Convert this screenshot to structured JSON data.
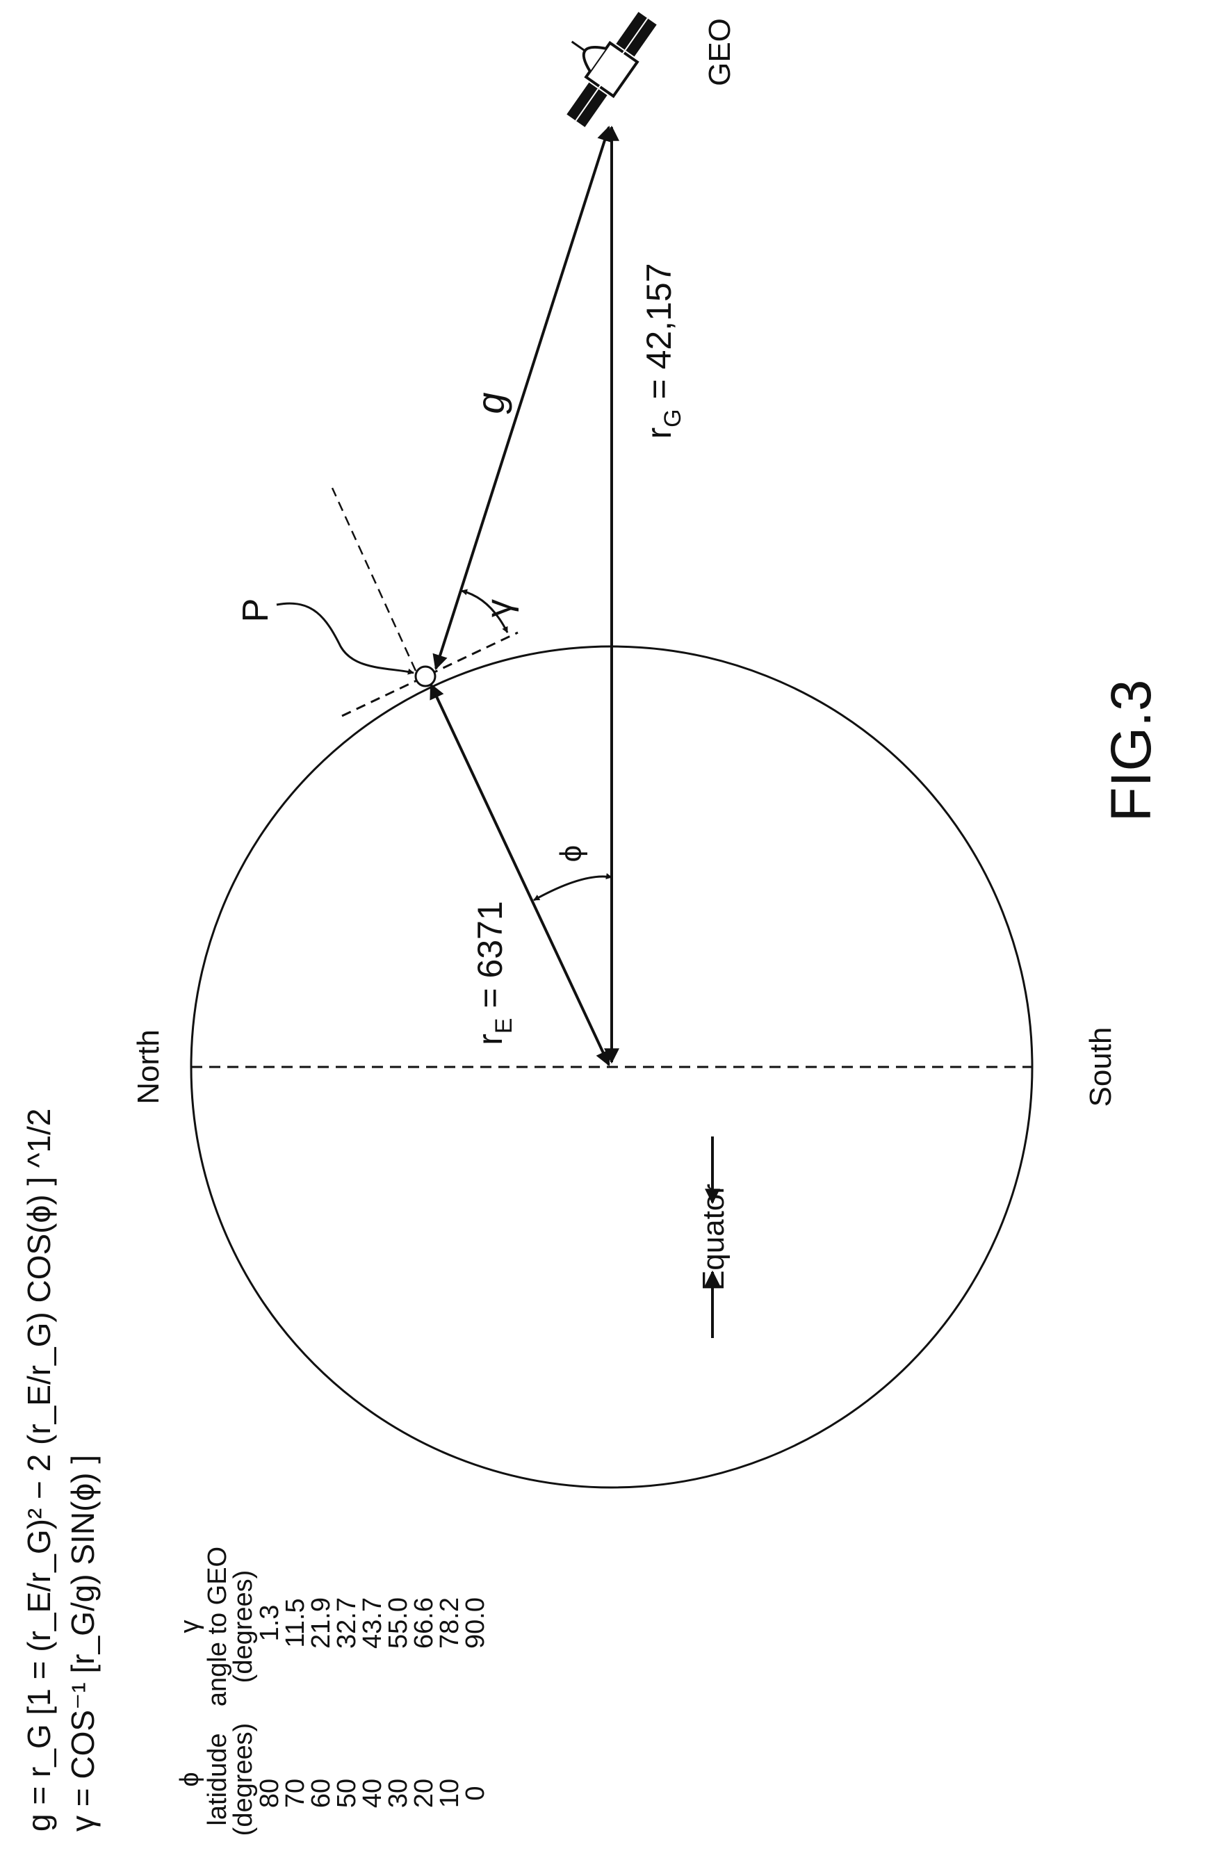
{
  "figure": {
    "title": "FIG.3",
    "labels": {
      "north": "North",
      "south": "South",
      "equator": "Equator",
      "geo": "GEO",
      "point_p": "P",
      "g": "g",
      "gamma": "γ",
      "phi": "ϕ",
      "r_e": "r",
      "r_e_sub": "E",
      "r_e_value": " = 6371",
      "r_g": "r",
      "r_g_sub": "G",
      "r_g_value": " = 42,157"
    },
    "formulas": {
      "g_eq": "g = r_G [1 = (r_E/r_G)² − 2 (r_E/r_G) COS(ϕ) ] ^1/2",
      "gamma_eq": "γ = COS⁻¹ [r_G/g) SIN(ϕ) ]"
    }
  },
  "table": {
    "col1_header": [
      "ϕ",
      "latidude",
      "(degrees)"
    ],
    "col2_header": [
      "γ",
      "angle to GEO",
      "(degrees)"
    ],
    "rows": [
      {
        "lat": "80",
        "angle": "1.3"
      },
      {
        "lat": "70",
        "angle": "11.5"
      },
      {
        "lat": "60",
        "angle": "21.9"
      },
      {
        "lat": "50",
        "angle": "32.7"
      },
      {
        "lat": "40",
        "angle": "43.7"
      },
      {
        "lat": "30",
        "angle": "55.0"
      },
      {
        "lat": "20",
        "angle": "66.6"
      },
      {
        "lat": "10",
        "angle": "78.2"
      },
      {
        "lat": "0",
        "angle": "90.0"
      }
    ]
  }
}
